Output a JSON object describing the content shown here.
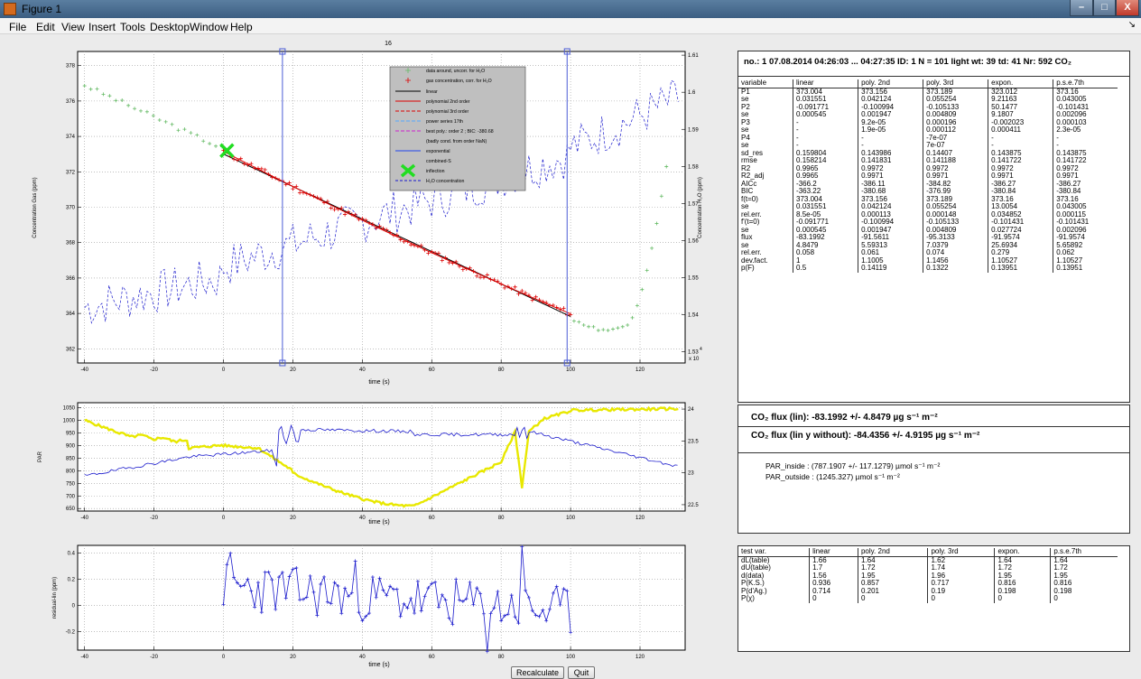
{
  "window": {
    "title": "Figure 1",
    "minimize": "–",
    "maximize": "□",
    "close": "X",
    "icon": "matlab-figure-icon"
  },
  "menu": {
    "items": [
      "File",
      "Edit",
      "View",
      "Insert",
      "Tools",
      "Desktop",
      "Window",
      "Help"
    ],
    "dock_arrow": "↘"
  },
  "main_plot": {
    "title": "16",
    "xlabel": "time (s)",
    "ylabel_left": "Concentration Gas (ppm)",
    "ylabel_right": "Concentration H₂O (ppm)",
    "right_exponent": "4",
    "right_exponent_base": "x 10",
    "xticks": [
      "-40",
      "-20",
      "0",
      "20",
      "40",
      "60",
      "80",
      "100",
      "120"
    ],
    "yticks_left": [
      "362",
      "364",
      "366",
      "368",
      "370",
      "372",
      "374",
      "376",
      "378"
    ],
    "yticks_right": [
      "1.53",
      "1.54",
      "1.55",
      "1.56",
      "1.57",
      "1.58",
      "1.59",
      "1.6",
      "1.61"
    ],
    "legend": [
      "data around, uncorr. for H₂O",
      "gas concentration, corr. for H₂O",
      "linear",
      "polynomial 2nd order",
      "polynomial 3rd order",
      "power series 17th",
      "best poly.: order 2 ; BIC: -380.68",
      "(badly cond. from order NaN)",
      "exponential",
      "combined-S",
      "inflection",
      "H₂O concentration"
    ],
    "colors": {
      "gas": "#dd0000",
      "outside": "#66bb66",
      "h2o": "#1a1acc",
      "linear": "#000000",
      "fit": "#dd0000",
      "inflection": "#22dd22"
    }
  },
  "par_plot": {
    "xlabel": "time (s)",
    "ylabel": "PAR",
    "xticks": [
      "-40",
      "-20",
      "0",
      "20",
      "40",
      "60",
      "80",
      "100",
      "120"
    ],
    "yticks_left": [
      "650",
      "700",
      "750",
      "800",
      "850",
      "900",
      "950",
      "1000",
      "1050"
    ],
    "yticks_right": [
      "22.5",
      "23",
      "23.5",
      "24"
    ],
    "colors": {
      "par": "#e8e800",
      "temp": "#1a1acc"
    }
  },
  "residual_plot": {
    "xlabel": "time (s)",
    "ylabel": "residual-lin (ppm)",
    "xticks": [
      "-40",
      "-20",
      "0",
      "20",
      "40",
      "60",
      "80",
      "100",
      "120"
    ],
    "yticks": [
      "-0.2",
      "0",
      "0.2",
      "0.4"
    ]
  },
  "info": {
    "header": "no.: 1  07.08.2014   04:26:03 ... 04:27:35  ID: 1   N = 101  light  wt: 39  td: 41  Nr: 592  CO₂",
    "columns": [
      "variable",
      "linear",
      "poly. 2nd",
      "poly. 3rd",
      "expon.",
      "p.s.e.7th"
    ],
    "rows": [
      [
        "P1",
        "373.004",
        "373.156",
        "373.189",
        "323.012",
        "373.16"
      ],
      [
        "se",
        "0.031551",
        "0.042124",
        "0.055254",
        "9.21163",
        "0.043005"
      ],
      [
        "P2",
        "-0.091771",
        "-0.100994",
        "-0.105133",
        "50.1477",
        "-0.101431"
      ],
      [
        "se",
        "0.000545",
        "0.001947",
        "0.004809",
        "9.1807",
        "0.002096"
      ],
      [
        "P3",
        "-",
        "9.2e-05",
        "0.000196",
        "-0.002023",
        "0.000103"
      ],
      [
        "se",
        "-",
        "1.9e-05",
        "0.000112",
        "0.000411",
        "2.3e-05"
      ],
      [
        "P4",
        "-",
        "-",
        "-7e-07",
        "-",
        "-"
      ],
      [
        "se",
        "-",
        "-",
        "7e-07",
        "-",
        "-"
      ],
      [
        "sd_res",
        "0.159804",
        "0.143986",
        "0.14407",
        "0.143875",
        "0.143875"
      ],
      [
        "rmse",
        "0.158214",
        "0.141831",
        "0.141188",
        "0.141722",
        "0.141722"
      ],
      [
        "R2",
        "0.9965",
        "0.9972",
        "0.9972",
        "0.9972",
        "0.9972"
      ],
      [
        "R2_adj",
        "0.9965",
        "0.9971",
        "0.9971",
        "0.9971",
        "0.9971"
      ],
      [
        "AICc",
        "-366.2",
        "-386.11",
        "-384.82",
        "-386.27",
        "-386.27"
      ],
      [
        "BIC",
        "-363.22",
        "-380.68",
        "-376.99",
        "-380.84",
        "-380.84"
      ],
      [
        "f(t=0)",
        "373.004",
        "373.156",
        "373.189",
        "373.16",
        "373.16"
      ],
      [
        "se",
        "0.031551",
        "0.042124",
        "0.055254",
        "13.0054",
        "0.043005"
      ],
      [
        "rel.err.",
        "8.5e-05",
        "0.000113",
        "0.000148",
        "0.034852",
        "0.000115"
      ],
      [
        "f'(t=0)",
        "-0.091771",
        "-0.100994",
        "-0.105133",
        "-0.101431",
        "-0.101431"
      ],
      [
        "se",
        "0.000545",
        "0.001947",
        "0.004809",
        "0.027724",
        "0.002096"
      ],
      [
        "flux",
        "-83.1992",
        "-91.5611",
        "-95.3133",
        "-91.9574",
        "-91.9574"
      ],
      [
        "se",
        "4.8479",
        "5.59313",
        "7.0379",
        "25.6934",
        "5.65892"
      ],
      [
        "rel.err.",
        "0.058",
        "0.061",
        "0.074",
        "0.279",
        "0.062"
      ],
      [
        "dev.fact.",
        "1",
        "1.1005",
        "1.1456",
        "1.10527",
        "1.10527"
      ],
      [
        "p(F)",
        "0.5",
        "0.14119",
        "0.1322",
        "0.13951",
        "0.13951"
      ]
    ]
  },
  "flux": {
    "lin": "CO₂  flux (lin):  -83.1992   +/- 4.8479   µg s⁻¹ m⁻²",
    "lin_without": "CO₂  flux (lin y without):  -84.4356   +/- 4.9195  µg s⁻¹ m⁻²",
    "par_inside": "PAR_inside : (787.1907   +/-   117.1279)  µmol s⁻¹ m⁻²",
    "par_outside": "PAR_outside : (1245.327)  µmol s⁻¹ m⁻²"
  },
  "tests": {
    "columns": [
      "test var.",
      "linear",
      "poly. 2nd",
      "poly. 3rd",
      "expon.",
      "p.s.e.7th"
    ],
    "rows": [
      [
        "dL(table)",
        "1.66",
        "1.64",
        "1.62",
        "1.64",
        "1.64"
      ],
      [
        "dU(table)",
        "1.7",
        "1.72",
        "1.74",
        "1.72",
        "1.72"
      ],
      [
        "d(data)",
        "1.56",
        "1.95",
        "1.96",
        "1.95",
        "1.95"
      ],
      [
        "P(K.S.)",
        "0.936",
        "0.857",
        "0.717",
        "0.816",
        "0.816"
      ],
      [
        "P(d'Ag.)",
        "0.714",
        "0.201",
        "0.19",
        "0.198",
        "0.198"
      ],
      [
        "P(χ)",
        "0",
        "0",
        "0",
        "0",
        "0"
      ]
    ]
  },
  "buttons": {
    "recalculate": "Recalculate",
    "quit": "Quit"
  }
}
